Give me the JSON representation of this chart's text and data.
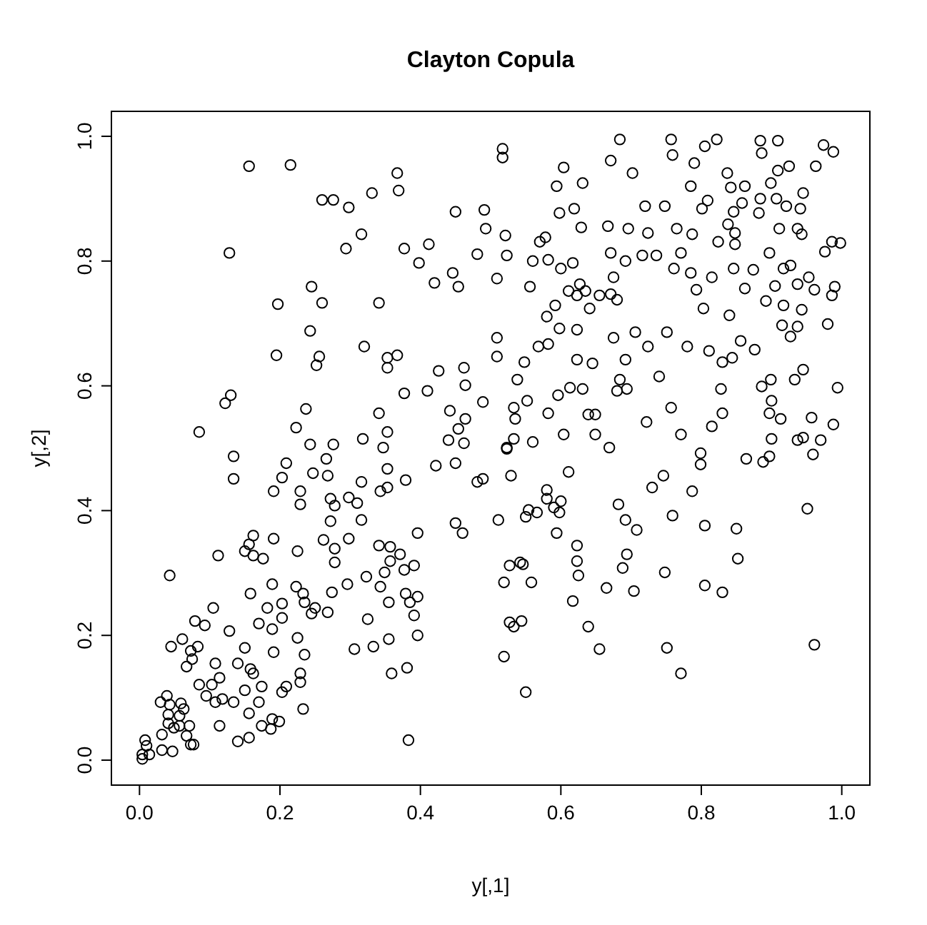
{
  "chart_data": {
    "type": "scatter",
    "title": "Clayton Copula",
    "xlabel": "y[,1]",
    "ylabel": "y[,2]",
    "color": "#000000",
    "marker": "circle",
    "grid": false,
    "xlim": [
      -0.04,
      1.04
    ],
    "ylim": [
      -0.04,
      1.04
    ],
    "xticks": [
      {
        "value": 0,
        "label": "0.0"
      },
      {
        "value": 0.2,
        "label": "0.2"
      },
      {
        "value": 0.4,
        "label": "0.4"
      },
      {
        "value": 0.6,
        "label": "0.6"
      },
      {
        "value": 0.8,
        "label": "0.8"
      },
      {
        "value": 1,
        "label": "1.0"
      }
    ],
    "yticks": [
      {
        "value": 0,
        "label": "0.0"
      },
      {
        "value": 0.2,
        "label": "0.2"
      },
      {
        "value": 0.4,
        "label": "0.4"
      },
      {
        "value": 0.6,
        "label": "0.6"
      },
      {
        "value": 0.8,
        "label": "0.8"
      },
      {
        "value": 1,
        "label": "1.0"
      }
    ],
    "x": [
      0.156,
      0.215,
      0.128,
      0.367,
      0.369,
      0.26,
      0.276,
      0.331,
      0.298,
      0.316,
      0.294,
      0.377,
      0.412,
      0.398,
      0.45,
      0.491,
      0.493,
      0.481,
      0.446,
      0.42,
      0.454,
      0.245,
      0.26,
      0.197,
      0.341,
      0.243,
      0.195,
      0.256,
      0.252,
      0.32,
      0.353,
      0.367,
      0.353,
      0.426,
      0.462,
      0.464,
      0.377,
      0.41,
      0.489,
      0.13,
      0.122,
      0.237,
      0.341,
      0.442,
      0.464,
      0.085,
      0.223,
      0.353,
      0.454,
      0.243,
      0.276,
      0.318,
      0.347,
      0.44,
      0.462,
      0.517,
      0.517,
      0.684,
      0.757,
      0.822,
      0.805,
      0.909,
      0.884,
      0.974,
      0.988,
      0.671,
      0.702,
      0.759,
      0.604,
      0.79,
      0.837,
      0.886,
      0.909,
      0.925,
      0.963,
      0.594,
      0.631,
      0.785,
      0.842,
      0.862,
      0.899,
      0.598,
      0.619,
      0.72,
      0.748,
      0.809,
      0.801,
      0.846,
      0.858,
      0.884,
      0.882,
      0.907,
      0.921,
      0.945,
      0.941,
      0.521,
      0.523,
      0.57,
      0.578,
      0.629,
      0.667,
      0.696,
      0.724,
      0.765,
      0.787,
      0.838,
      0.848,
      0.824,
      0.848,
      0.911,
      0.937,
      0.943,
      0.986,
      0.998,
      0.976,
      0.671,
      0.56,
      0.582,
      0.6,
      0.617,
      0.692,
      0.716,
      0.736,
      0.771,
      0.761,
      0.785,
      0.815,
      0.846,
      0.874,
      0.897,
      0.917,
      0.927,
      0.953,
      0.509,
      0.556,
      0.627,
      0.611,
      0.623,
      0.635,
      0.655,
      0.671,
      0.675,
      0.68,
      0.641,
      0.592,
      0.58,
      0.598,
      0.623,
      0.793,
      0.803,
      0.84,
      0.862,
      0.905,
      0.937,
      0.961,
      0.99,
      0.986,
      0.892,
      0.917,
      0.943,
      0.915,
      0.937,
      0.98,
      0.927,
      0.509,
      0.509,
      0.568,
      0.582,
      0.623,
      0.645,
      0.675,
      0.692,
      0.706,
      0.724,
      0.751,
      0.78,
      0.811,
      0.83,
      0.844,
      0.856,
      0.876,
      0.548,
      0.538,
      0.596,
      0.613,
      0.631,
      0.684,
      0.68,
      0.694,
      0.74,
      0.828,
      0.886,
      0.899,
      0.933,
      0.945,
      0.994,
      0.9,
      0.897,
      0.913,
      0.957,
      0.988,
      0.533,
      0.552,
      0.535,
      0.582,
      0.639,
      0.649,
      0.722,
      0.757,
      0.83,
      0.815,
      0.771,
      0.604,
      0.649,
      0.669,
      0.56,
      0.533,
      0.523,
      0.9,
      0.937,
      0.945,
      0.97,
      0.134,
      0.134,
      0.209,
      0.203,
      0.191,
      0.229,
      0.229,
      0.247,
      0.268,
      0.266,
      0.316,
      0.272,
      0.278,
      0.298,
      0.31,
      0.343,
      0.353,
      0.379,
      0.353,
      0.272,
      0.316,
      0.396,
      0.45,
      0.46,
      0.481,
      0.489,
      0.422,
      0.45,
      0.043,
      0.112,
      0.162,
      0.156,
      0.15,
      0.162,
      0.176,
      0.191,
      0.225,
      0.262,
      0.278,
      0.278,
      0.298,
      0.341,
      0.357,
      0.371,
      0.357,
      0.349,
      0.377,
      0.391,
      0.189,
      0.223,
      0.233,
      0.274,
      0.296,
      0.323,
      0.343,
      0.355,
      0.379,
      0.385,
      0.396,
      0.391,
      0.396,
      0.158,
      0.105,
      0.182,
      0.203,
      0.079,
      0.093,
      0.128,
      0.17,
      0.189,
      0.203,
      0.235,
      0.25,
      0.268,
      0.245,
      0.325,
      0.045,
      0.061,
      0.073,
      0.083,
      0.075,
      0.067,
      0.108,
      0.14,
      0.15,
      0.162,
      0.158,
      0.191,
      0.225,
      0.235,
      0.229,
      0.229,
      0.306,
      0.333,
      0.355,
      0.359,
      0.381,
      0.114,
      0.085,
      0.103,
      0.095,
      0.108,
      0.118,
      0.134,
      0.15,
      0.174,
      0.209,
      0.203,
      0.17,
      0.156,
      0.233,
      0.03,
      0.039,
      0.043,
      0.059,
      0.063,
      0.041,
      0.057,
      0.049,
      0.057,
      0.071,
      0.041,
      0.114,
      0.032,
      0.067,
      0.073,
      0.077,
      0.047,
      0.032,
      0.008,
      0.01,
      0.014,
      0.004,
      0.004,
      0.14,
      0.156,
      0.174,
      0.189,
      0.199,
      0.187,
      0.383,
      0.523,
      0.799,
      0.799,
      0.864,
      0.888,
      0.897,
      0.959,
      0.529,
      0.611,
      0.746,
      0.73,
      0.787,
      0.58,
      0.58,
      0.6,
      0.59,
      0.554,
      0.566,
      0.55,
      0.598,
      0.511,
      0.594,
      0.682,
      0.692,
      0.708,
      0.759,
      0.805,
      0.85,
      0.951,
      0.623,
      0.623,
      0.625,
      0.694,
      0.688,
      0.748,
      0.852,
      0.527,
      0.542,
      0.546,
      0.519,
      0.558,
      0.665,
      0.704,
      0.805,
      0.83,
      0.617,
      0.527,
      0.533,
      0.544,
      0.639,
      0.519,
      0.655,
      0.751,
      0.771,
      0.961,
      0.55
    ],
    "values": [
      0.952,
      0.954,
      0.813,
      0.941,
      0.913,
      0.898,
      0.898,
      0.909,
      0.886,
      0.843,
      0.82,
      0.82,
      0.827,
      0.797,
      0.879,
      0.882,
      0.852,
      0.811,
      0.781,
      0.765,
      0.759,
      0.759,
      0.733,
      0.731,
      0.733,
      0.688,
      0.649,
      0.647,
      0.633,
      0.663,
      0.645,
      0.649,
      0.629,
      0.624,
      0.629,
      0.601,
      0.588,
      0.592,
      0.574,
      0.585,
      0.572,
      0.563,
      0.556,
      0.56,
      0.547,
      0.526,
      0.533,
      0.526,
      0.531,
      0.506,
      0.506,
      0.515,
      0.501,
      0.513,
      0.508,
      0.98,
      0.966,
      0.995,
      0.995,
      0.995,
      0.984,
      0.993,
      0.993,
      0.986,
      0.975,
      0.961,
      0.941,
      0.97,
      0.95,
      0.957,
      0.941,
      0.973,
      0.945,
      0.952,
      0.952,
      0.92,
      0.925,
      0.92,
      0.918,
      0.92,
      0.925,
      0.877,
      0.884,
      0.888,
      0.888,
      0.897,
      0.884,
      0.879,
      0.893,
      0.9,
      0.877,
      0.9,
      0.888,
      0.909,
      0.884,
      0.841,
      0.809,
      0.831,
      0.838,
      0.854,
      0.856,
      0.852,
      0.845,
      0.852,
      0.843,
      0.859,
      0.845,
      0.831,
      0.827,
      0.852,
      0.852,
      0.843,
      0.831,
      0.829,
      0.815,
      0.813,
      0.8,
      0.802,
      0.788,
      0.797,
      0.8,
      0.809,
      0.809,
      0.813,
      0.788,
      0.781,
      0.774,
      0.788,
      0.786,
      0.813,
      0.788,
      0.793,
      0.774,
      0.772,
      0.759,
      0.763,
      0.752,
      0.745,
      0.752,
      0.745,
      0.747,
      0.774,
      0.738,
      0.724,
      0.729,
      0.711,
      0.692,
      0.69,
      0.754,
      0.724,
      0.713,
      0.756,
      0.76,
      0.763,
      0.754,
      0.759,
      0.745,
      0.736,
      0.729,
      0.722,
      0.697,
      0.695,
      0.699,
      0.679,
      0.677,
      0.647,
      0.663,
      0.667,
      0.642,
      0.636,
      0.677,
      0.642,
      0.686,
      0.663,
      0.686,
      0.663,
      0.656,
      0.638,
      0.645,
      0.672,
      0.658,
      0.638,
      0.61,
      0.585,
      0.597,
      0.595,
      0.61,
      0.592,
      0.595,
      0.615,
      0.595,
      0.599,
      0.61,
      0.61,
      0.626,
      0.597,
      0.576,
      0.556,
      0.547,
      0.549,
      0.538,
      0.565,
      0.576,
      0.547,
      0.556,
      0.554,
      0.554,
      0.542,
      0.565,
      0.556,
      0.535,
      0.522,
      0.522,
      0.522,
      0.501,
      0.51,
      0.515,
      0.501,
      0.515,
      0.513,
      0.517,
      0.513,
      0.487,
      0.451,
      0.476,
      0.453,
      0.431,
      0.431,
      0.41,
      0.46,
      0.456,
      0.483,
      0.446,
      0.419,
      0.408,
      0.421,
      0.412,
      0.431,
      0.437,
      0.449,
      0.467,
      0.383,
      0.385,
      0.364,
      0.38,
      0.364,
      0.446,
      0.451,
      0.472,
      0.476,
      0.296,
      0.328,
      0.36,
      0.346,
      0.335,
      0.328,
      0.323,
      0.355,
      0.335,
      0.353,
      0.339,
      0.317,
      0.355,
      0.344,
      0.342,
      0.33,
      0.319,
      0.301,
      0.305,
      0.312,
      0.282,
      0.278,
      0.267,
      0.269,
      0.282,
      0.294,
      0.278,
      0.253,
      0.267,
      0.253,
      0.262,
      0.232,
      0.2,
      0.267,
      0.244,
      0.244,
      0.251,
      0.223,
      0.216,
      0.207,
      0.219,
      0.21,
      0.228,
      0.253,
      0.244,
      0.237,
      0.235,
      0.226,
      0.182,
      0.194,
      0.175,
      0.182,
      0.162,
      0.15,
      0.155,
      0.155,
      0.18,
      0.139,
      0.146,
      0.173,
      0.196,
      0.169,
      0.139,
      0.125,
      0.178,
      0.182,
      0.194,
      0.139,
      0.148,
      0.132,
      0.121,
      0.121,
      0.103,
      0.093,
      0.098,
      0.093,
      0.112,
      0.118,
      0.118,
      0.109,
      0.093,
      0.075,
      0.082,
      0.093,
      0.103,
      0.089,
      0.091,
      0.082,
      0.073,
      0.071,
      0.052,
      0.055,
      0.055,
      0.059,
      0.055,
      0.041,
      0.039,
      0.025,
      0.025,
      0.014,
      0.016,
      0.032,
      0.023,
      0.009,
      0.002,
      0.009,
      0.03,
      0.036,
      0.055,
      0.066,
      0.062,
      0.05,
      0.032,
      0.499,
      0.492,
      0.474,
      0.483,
      0.478,
      0.487,
      0.49,
      0.456,
      0.462,
      0.456,
      0.437,
      0.431,
      0.433,
      0.419,
      0.415,
      0.405,
      0.401,
      0.397,
      0.39,
      0.397,
      0.385,
      0.364,
      0.41,
      0.385,
      0.369,
      0.392,
      0.376,
      0.371,
      0.403,
      0.344,
      0.319,
      0.296,
      0.33,
      0.308,
      0.301,
      0.323,
      0.312,
      0.317,
      0.314,
      0.285,
      0.285,
      0.276,
      0.271,
      0.28,
      0.269,
      0.255,
      0.221,
      0.214,
      0.223,
      0.214,
      0.166,
      0.178,
      0.18,
      0.139,
      0.185,
      0.109
    ]
  }
}
